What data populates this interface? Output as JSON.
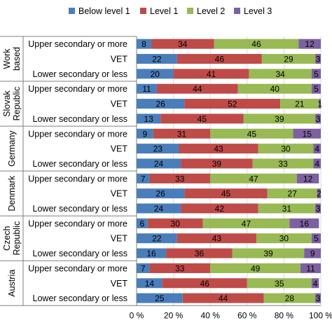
{
  "chart_data": {
    "type": "bar",
    "orientation": "horizontal",
    "stacked": true,
    "legend_position": "top",
    "xlim": [
      0,
      100
    ],
    "x_ticks": [
      "0 %",
      "20 %",
      "40 %",
      "60 %",
      "80 %",
      "100 %"
    ],
    "grid": true,
    "series": [
      {
        "name": "Below level 1",
        "color": "#4a7ebb"
      },
      {
        "name": "Level 1",
        "color": "#be4b48"
      },
      {
        "name": "Level 2",
        "color": "#98b954"
      },
      {
        "name": "Level 3",
        "color": "#7d60a0"
      }
    ],
    "groups": [
      {
        "name": "Work based",
        "rows": [
          {
            "category": "Upper secondary or more",
            "values": [
              8,
              34,
              46,
              12
            ]
          },
          {
            "category": "VET",
            "values": [
              22,
              46,
              29,
              3
            ]
          },
          {
            "category": "Lower secondary or less",
            "values": [
              20,
              41,
              34,
              5
            ]
          }
        ]
      },
      {
        "name": "Slovak Republic",
        "rows": [
          {
            "category": "Upper secondary or more",
            "values": [
              11,
              44,
              40,
              5
            ]
          },
          {
            "category": "VET",
            "values": [
              26,
              52,
              21,
              1
            ]
          },
          {
            "category": "Lower secondary or less",
            "values": [
              13,
              45,
              39,
              3
            ]
          }
        ]
      },
      {
        "name": "Germany",
        "rows": [
          {
            "category": "Upper secondary or more",
            "values": [
              9,
              31,
              45,
              15
            ]
          },
          {
            "category": "VET",
            "values": [
              23,
              43,
              30,
              4
            ]
          },
          {
            "category": "Lower secondary or less",
            "values": [
              24,
              39,
              33,
              4
            ]
          }
        ]
      },
      {
        "name": "Denmark",
        "rows": [
          {
            "category": "Upper secondary or more",
            "values": [
              7,
              33,
              47,
              12
            ]
          },
          {
            "category": "VET",
            "values": [
              26,
              45,
              27,
              2
            ]
          },
          {
            "category": "Lower secondary or less",
            "values": [
              24,
              42,
              31,
              3
            ]
          }
        ]
      },
      {
        "name": "Czech Republic",
        "rows": [
          {
            "category": "Upper secondary or more",
            "values": [
              6,
              30,
              47,
              16
            ]
          },
          {
            "category": "VET",
            "values": [
              22,
              43,
              30,
              5
            ]
          },
          {
            "category": "Lower secondary or less",
            "values": [
              16,
              36,
              39,
              9
            ]
          }
        ]
      },
      {
        "name": "Austria",
        "rows": [
          {
            "category": "Upper secondary or more",
            "values": [
              7,
              33,
              49,
              11
            ]
          },
          {
            "category": "VET",
            "values": [
              14,
              46,
              35,
              4
            ]
          },
          {
            "category": "Lower secondary or less",
            "values": [
              25,
              44,
              28,
              3
            ]
          }
        ]
      }
    ]
  }
}
